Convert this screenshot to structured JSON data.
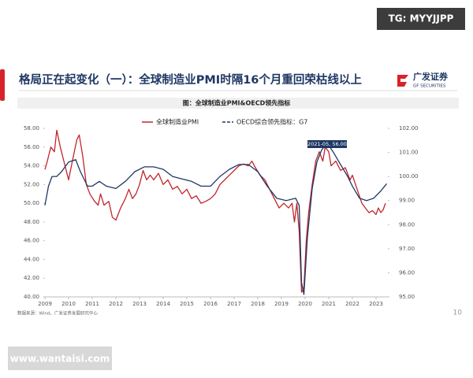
{
  "header": {
    "watermark": "TG: MYYJJPP",
    "title": "格局正在起变化（一）：全球制造业PMI时隔16个月重回荣枯线以上",
    "logo_name": "广发证券",
    "logo_sub": "GF SECURITIES"
  },
  "chart_data": {
    "type": "line",
    "title": "图：全球制造业PMI&OECD领先指标",
    "annotation": "2021-05, 56.00",
    "source": "数据来源：Wind，广发证券发展研究中心",
    "xlim": [
      2009,
      2023.5
    ],
    "xticks": [
      2009,
      2010,
      2011,
      2012,
      2013,
      2014,
      2015,
      2016,
      2017,
      2018,
      2019,
      2020,
      2021,
      2022,
      2023
    ],
    "ylim": [
      40,
      58
    ],
    "yticks": [
      {
        "value": 40,
        "label": "40.00"
      },
      {
        "value": 42,
        "label": "42.00"
      },
      {
        "value": 44,
        "label": "44.00"
      },
      {
        "value": 46,
        "label": "46.00"
      },
      {
        "value": 48,
        "label": "48.00"
      },
      {
        "value": 50,
        "label": "50.00"
      },
      {
        "value": 52,
        "label": "52.00"
      },
      {
        "value": 54,
        "label": "54.00"
      },
      {
        "value": 56,
        "label": "56.00"
      },
      {
        "value": 58,
        "label": "58.00"
      }
    ],
    "y2lim": [
      95,
      102
    ],
    "y2ticks": [
      {
        "value": 95,
        "label": "95.00"
      },
      {
        "value": 96,
        "label": "96.00"
      },
      {
        "value": 97,
        "label": "97.00"
      },
      {
        "value": 98,
        "label": "98.00"
      },
      {
        "value": 99,
        "label": "99.00"
      },
      {
        "value": 100,
        "label": "100.00"
      },
      {
        "value": 101,
        "label": "101.00"
      },
      {
        "value": 102,
        "label": "102.00"
      }
    ],
    "series": [
      {
        "name": "全球制造业PMI",
        "color": "#c0262d",
        "axis": "y",
        "x": [
          2009.0,
          2009.1,
          2009.25,
          2009.4,
          2009.5,
          2009.65,
          2009.8,
          2010.0,
          2010.2,
          2010.35,
          2010.45,
          2010.6,
          2010.75,
          2010.9,
          2011.1,
          2011.25,
          2011.35,
          2011.5,
          2011.7,
          2011.85,
          2012.0,
          2012.2,
          2012.4,
          2012.55,
          2012.7,
          2012.85,
          2013.0,
          2013.15,
          2013.3,
          2013.45,
          2013.6,
          2013.8,
          2014.0,
          2014.2,
          2014.4,
          2014.6,
          2014.8,
          2015.0,
          2015.2,
          2015.4,
          2015.6,
          2015.8,
          2016.0,
          2016.2,
          2016.4,
          2016.6,
          2016.8,
          2017.0,
          2017.2,
          2017.4,
          2017.6,
          2017.75,
          2017.9,
          2018.1,
          2018.3,
          2018.5,
          2018.7,
          2018.9,
          2019.1,
          2019.3,
          2019.45,
          2019.55,
          2019.65,
          2019.75,
          2019.85,
          2019.95,
          2020.05,
          2020.15,
          2020.3,
          2020.45,
          2020.6,
          2020.75,
          2020.85,
          2021.0,
          2021.1,
          2021.3,
          2021.5,
          2021.7,
          2021.9,
          2022.0,
          2022.2,
          2022.4,
          2022.55,
          2022.7,
          2022.85,
          2023.0,
          2023.1,
          2023.2,
          2023.3,
          2023.4
        ],
        "values": [
          53.6,
          54.5,
          56.0,
          55.5,
          57.8,
          56.0,
          54.5,
          52.5,
          55.0,
          56.8,
          57.3,
          55.0,
          52.0,
          51.0,
          50.2,
          49.8,
          51.0,
          49.8,
          50.2,
          48.5,
          48.2,
          49.5,
          50.5,
          51.5,
          50.5,
          51.0,
          52.0,
          53.5,
          52.5,
          53.0,
          52.5,
          53.2,
          52.0,
          52.5,
          51.5,
          51.8,
          51.0,
          51.5,
          50.5,
          50.8,
          50.0,
          50.2,
          50.5,
          51.0,
          52.0,
          52.5,
          53.0,
          53.5,
          54.0,
          54.2,
          54.0,
          54.5,
          53.8,
          53.0,
          52.5,
          51.5,
          50.5,
          49.5,
          50.0,
          49.5,
          50.0,
          48.0,
          50.0,
          47.0,
          40.5,
          41.0,
          46.0,
          49.0,
          52.0,
          54.5,
          55.5,
          54.5,
          56.0,
          55.5,
          54.0,
          54.5,
          53.5,
          53.8,
          52.5,
          53.0,
          51.5,
          50.0,
          49.5,
          49.0,
          49.2,
          48.8,
          49.5,
          49.0,
          49.3,
          50.0
        ]
      },
      {
        "name": "OECD综合领先指标：G7",
        "color": "#1f3864",
        "axis": "y2",
        "x": [
          2009.0,
          2009.15,
          2009.3,
          2009.5,
          2009.7,
          2010.0,
          2010.3,
          2010.5,
          2010.8,
          2011.0,
          2011.3,
          2011.6,
          2012.0,
          2012.4,
          2012.8,
          2013.2,
          2013.6,
          2014.0,
          2014.4,
          2014.8,
          2015.2,
          2015.6,
          2016.0,
          2016.4,
          2016.8,
          2017.2,
          2017.6,
          2018.0,
          2018.4,
          2018.8,
          2019.2,
          2019.6,
          2019.75,
          2019.85,
          2019.95,
          2020.1,
          2020.3,
          2020.5,
          2020.7,
          2020.85,
          2021.0,
          2021.2,
          2021.5,
          2021.8,
          2022.0,
          2022.3,
          2022.6,
          2022.9,
          2023.2,
          2023.45
        ],
        "values": [
          98.8,
          99.6,
          100.0,
          100.0,
          100.2,
          100.6,
          100.7,
          100.2,
          99.6,
          99.6,
          99.8,
          99.6,
          99.5,
          99.8,
          100.2,
          100.4,
          100.4,
          100.3,
          100.0,
          99.9,
          99.8,
          99.6,
          99.6,
          100.0,
          100.3,
          100.5,
          100.5,
          100.2,
          99.6,
          99.1,
          99.0,
          99.1,
          98.8,
          95.6,
          95.1,
          97.5,
          99.5,
          100.6,
          101.1,
          101.3,
          101.3,
          101.0,
          100.5,
          100.0,
          99.6,
          99.1,
          99.0,
          99.1,
          99.4,
          99.7
        ]
      }
    ]
  },
  "footer": {
    "page_number": "10",
    "site": "www.wantaisi.com"
  }
}
